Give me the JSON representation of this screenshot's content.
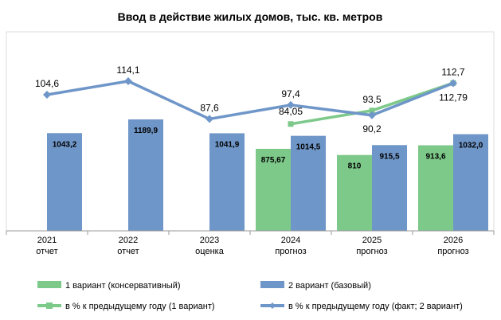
{
  "chart_data": {
    "type": "bar",
    "title": "Ввод в действие жилых домов, тыс. кв. метров",
    "categories": [
      [
        "2021",
        "отчет"
      ],
      [
        "2022",
        "отчет"
      ],
      [
        "2023",
        "оценка"
      ],
      [
        "2024",
        "прогноз"
      ],
      [
        "2025",
        "прогноз"
      ],
      [
        "2026",
        "прогноз"
      ]
    ],
    "series": [
      {
        "name": "1 вариант (консервативный)",
        "kind": "bar",
        "color": "#7DC98A",
        "values": [
          null,
          null,
          null,
          875.67,
          810,
          913.6
        ],
        "labels": [
          null,
          null,
          null,
          "875,67",
          "810",
          "913,6"
        ]
      },
      {
        "name": "2 вариант (базовый)",
        "kind": "bar",
        "color": "#6F96C8",
        "values": [
          1043.2,
          1189.9,
          1041.9,
          1014.5,
          915.5,
          1032.0
        ],
        "labels": [
          "1043,2",
          "1189,9",
          "1041,9",
          "1014,5",
          "915,5",
          "1032,0"
        ]
      },
      {
        "name": "в % к предыдущему году (1 вариант)",
        "kind": "line",
        "color": "#7DC98A",
        "values": [
          null,
          null,
          null,
          84.05,
          93.5,
          112.79
        ],
        "labels": [
          null,
          null,
          null,
          "84,05",
          "93,5",
          "112,79"
        ]
      },
      {
        "name": "в % к предыдущему году (факт; 2 вариант)",
        "kind": "line",
        "color": "#6F96C8",
        "values": [
          104.6,
          114.1,
          87.6,
          97.4,
          90.2,
          112.7
        ],
        "labels": [
          "104,6",
          "114,1",
          "87,6",
          "97,4",
          "90,2",
          "112,7"
        ]
      }
    ]
  }
}
